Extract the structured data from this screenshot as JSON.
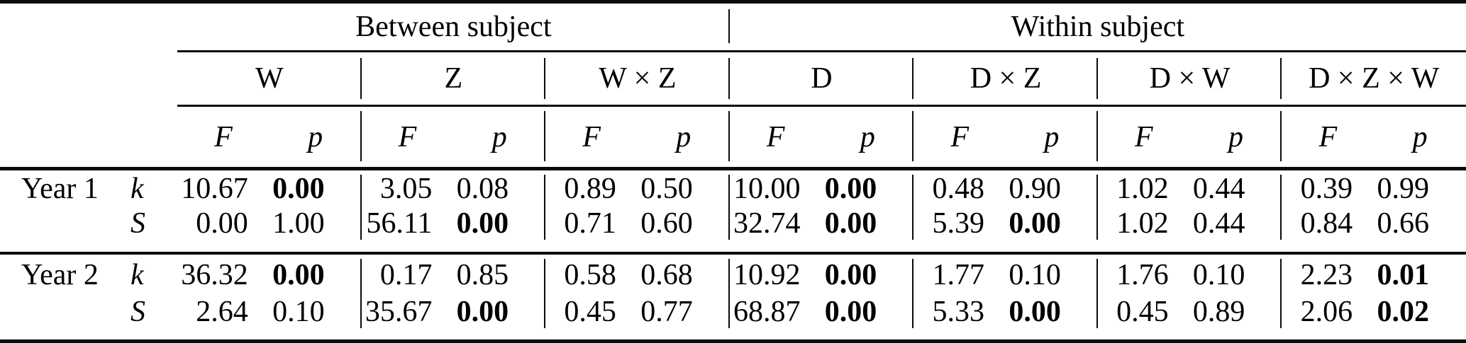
{
  "table": {
    "group_headers": [
      {
        "label": "Between subject"
      },
      {
        "label": "Within subject"
      }
    ],
    "factors": [
      "W",
      "Z",
      "W × Z",
      "D",
      "D × Z",
      "D × W",
      "D × Z × W"
    ],
    "stat_headers": {
      "f": "F",
      "p": "p"
    },
    "row_groups": [
      {
        "label": "Year 1",
        "rows": [
          {
            "label": "k",
            "cells": [
              {
                "f": "10.67",
                "p": "0.00",
                "sig": true
              },
              {
                "f": "3.05",
                "p": "0.08",
                "sig": false
              },
              {
                "f": "0.89",
                "p": "0.50",
                "sig": false
              },
              {
                "f": "10.00",
                "p": "0.00",
                "sig": true
              },
              {
                "f": "0.48",
                "p": "0.90",
                "sig": false
              },
              {
                "f": "1.02",
                "p": "0.44",
                "sig": false
              },
              {
                "f": "0.39",
                "p": "0.99",
                "sig": false
              }
            ]
          },
          {
            "label": "S",
            "cells": [
              {
                "f": "0.00",
                "p": "1.00",
                "sig": false
              },
              {
                "f": "56.11",
                "p": "0.00",
                "sig": true
              },
              {
                "f": "0.71",
                "p": "0.60",
                "sig": false
              },
              {
                "f": "32.74",
                "p": "0.00",
                "sig": true
              },
              {
                "f": "5.39",
                "p": "0.00",
                "sig": true
              },
              {
                "f": "1.02",
                "p": "0.44",
                "sig": false
              },
              {
                "f": "0.84",
                "p": "0.66",
                "sig": false
              }
            ]
          }
        ]
      },
      {
        "label": "Year 2",
        "rows": [
          {
            "label": "k",
            "cells": [
              {
                "f": "36.32",
                "p": "0.00",
                "sig": true
              },
              {
                "f": "0.17",
                "p": "0.85",
                "sig": false
              },
              {
                "f": "0.58",
                "p": "0.68",
                "sig": false
              },
              {
                "f": "10.92",
                "p": "0.00",
                "sig": true
              },
              {
                "f": "1.77",
                "p": "0.10",
                "sig": false
              },
              {
                "f": "1.76",
                "p": "0.10",
                "sig": false
              },
              {
                "f": "2.23",
                "p": "0.01",
                "sig": true
              }
            ]
          },
          {
            "label": "S",
            "cells": [
              {
                "f": "2.64",
                "p": "0.10",
                "sig": false
              },
              {
                "f": "35.67",
                "p": "0.00",
                "sig": true
              },
              {
                "f": "0.45",
                "p": "0.77",
                "sig": false
              },
              {
                "f": "68.87",
                "p": "0.00",
                "sig": true
              },
              {
                "f": "5.33",
                "p": "0.00",
                "sig": true
              },
              {
                "f": "0.45",
                "p": "0.89",
                "sig": false
              },
              {
                "f": "2.06",
                "p": "0.02",
                "sig": true
              }
            ]
          }
        ]
      }
    ]
  }
}
